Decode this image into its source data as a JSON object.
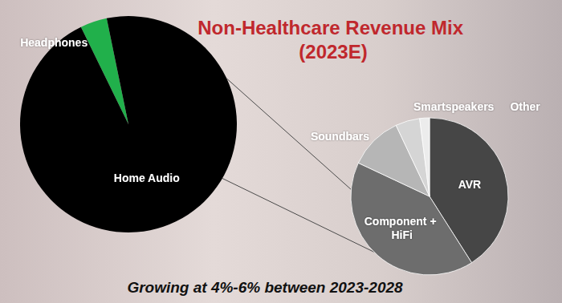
{
  "chart_data": [
    {
      "type": "pie",
      "title": "Non-Healthcare Revenue Mix (2023E)",
      "annotation": "Growing at 4%-6% between 2023-2028",
      "categories": [
        "Headphones",
        "Home Audio"
      ],
      "values": [
        4,
        96
      ],
      "colors": [
        "#21b04b",
        "#000000"
      ]
    },
    {
      "type": "pie",
      "categories": [
        "AVR",
        "Component + HiFi",
        "Soundbars",
        "Smartspeakers",
        "Other"
      ],
      "values": [
        41,
        41,
        11,
        5,
        2
      ],
      "colors": [
        "#464646",
        "#6d6d6d",
        "#b6b6b6",
        "#d5d5d5",
        "#ececec"
      ]
    }
  ]
}
